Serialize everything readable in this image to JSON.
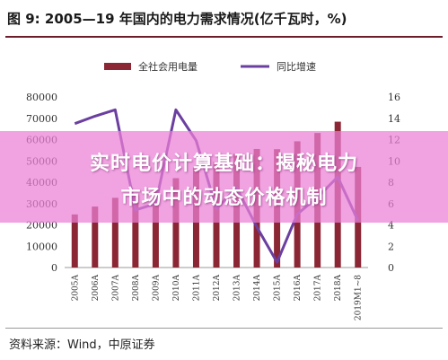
{
  "figure_title": "图 9: 2005—19 年国内的电力需求情况(亿千瓦时，%)",
  "source": "资料来源：Wind，中原证券",
  "overlay": {
    "line1": "实时电价计算基础：揭秘电力",
    "line2": "市场中的动态价格机制"
  },
  "colors": {
    "bar": "#8b2635",
    "line": "#6b3fa0",
    "overlay": "#ec80d6"
  },
  "chart_data": {
    "type": "bar",
    "categories": [
      "2005A",
      "2006A",
      "2007A",
      "2008A",
      "2009A",
      "2010A",
      "2011A",
      "2012A",
      "2013A",
      "2014A",
      "2015A",
      "2016A",
      "2017A",
      "2018A",
      "2019M1~8"
    ],
    "series": [
      {
        "name": "全社会用电量",
        "axis": "left",
        "type": "bar",
        "values": [
          24900,
          28600,
          32700,
          34500,
          36600,
          41900,
          47000,
          49600,
          53400,
          55600,
          55500,
          59200,
          63100,
          68400,
          47200
        ]
      },
      {
        "name": "同比增速",
        "axis": "right",
        "type": "line",
        "values": [
          13.5,
          14.2,
          14.8,
          5.4,
          6.0,
          14.8,
          11.9,
          5.5,
          7.5,
          3.8,
          0.5,
          5.0,
          6.6,
          8.5,
          4.4
        ]
      }
    ],
    "y_left": {
      "min": 0,
      "max": 80000,
      "ticks": [
        "0",
        "10000",
        "20000",
        "30000",
        "40000",
        "50000",
        "60000",
        "70000",
        "80000"
      ]
    },
    "y_right": {
      "min": 0,
      "max": 16,
      "ticks": [
        "0",
        "2",
        "4",
        "6",
        "8",
        "10",
        "12",
        "14",
        "16"
      ]
    },
    "legend_position": "top",
    "grid": false
  }
}
